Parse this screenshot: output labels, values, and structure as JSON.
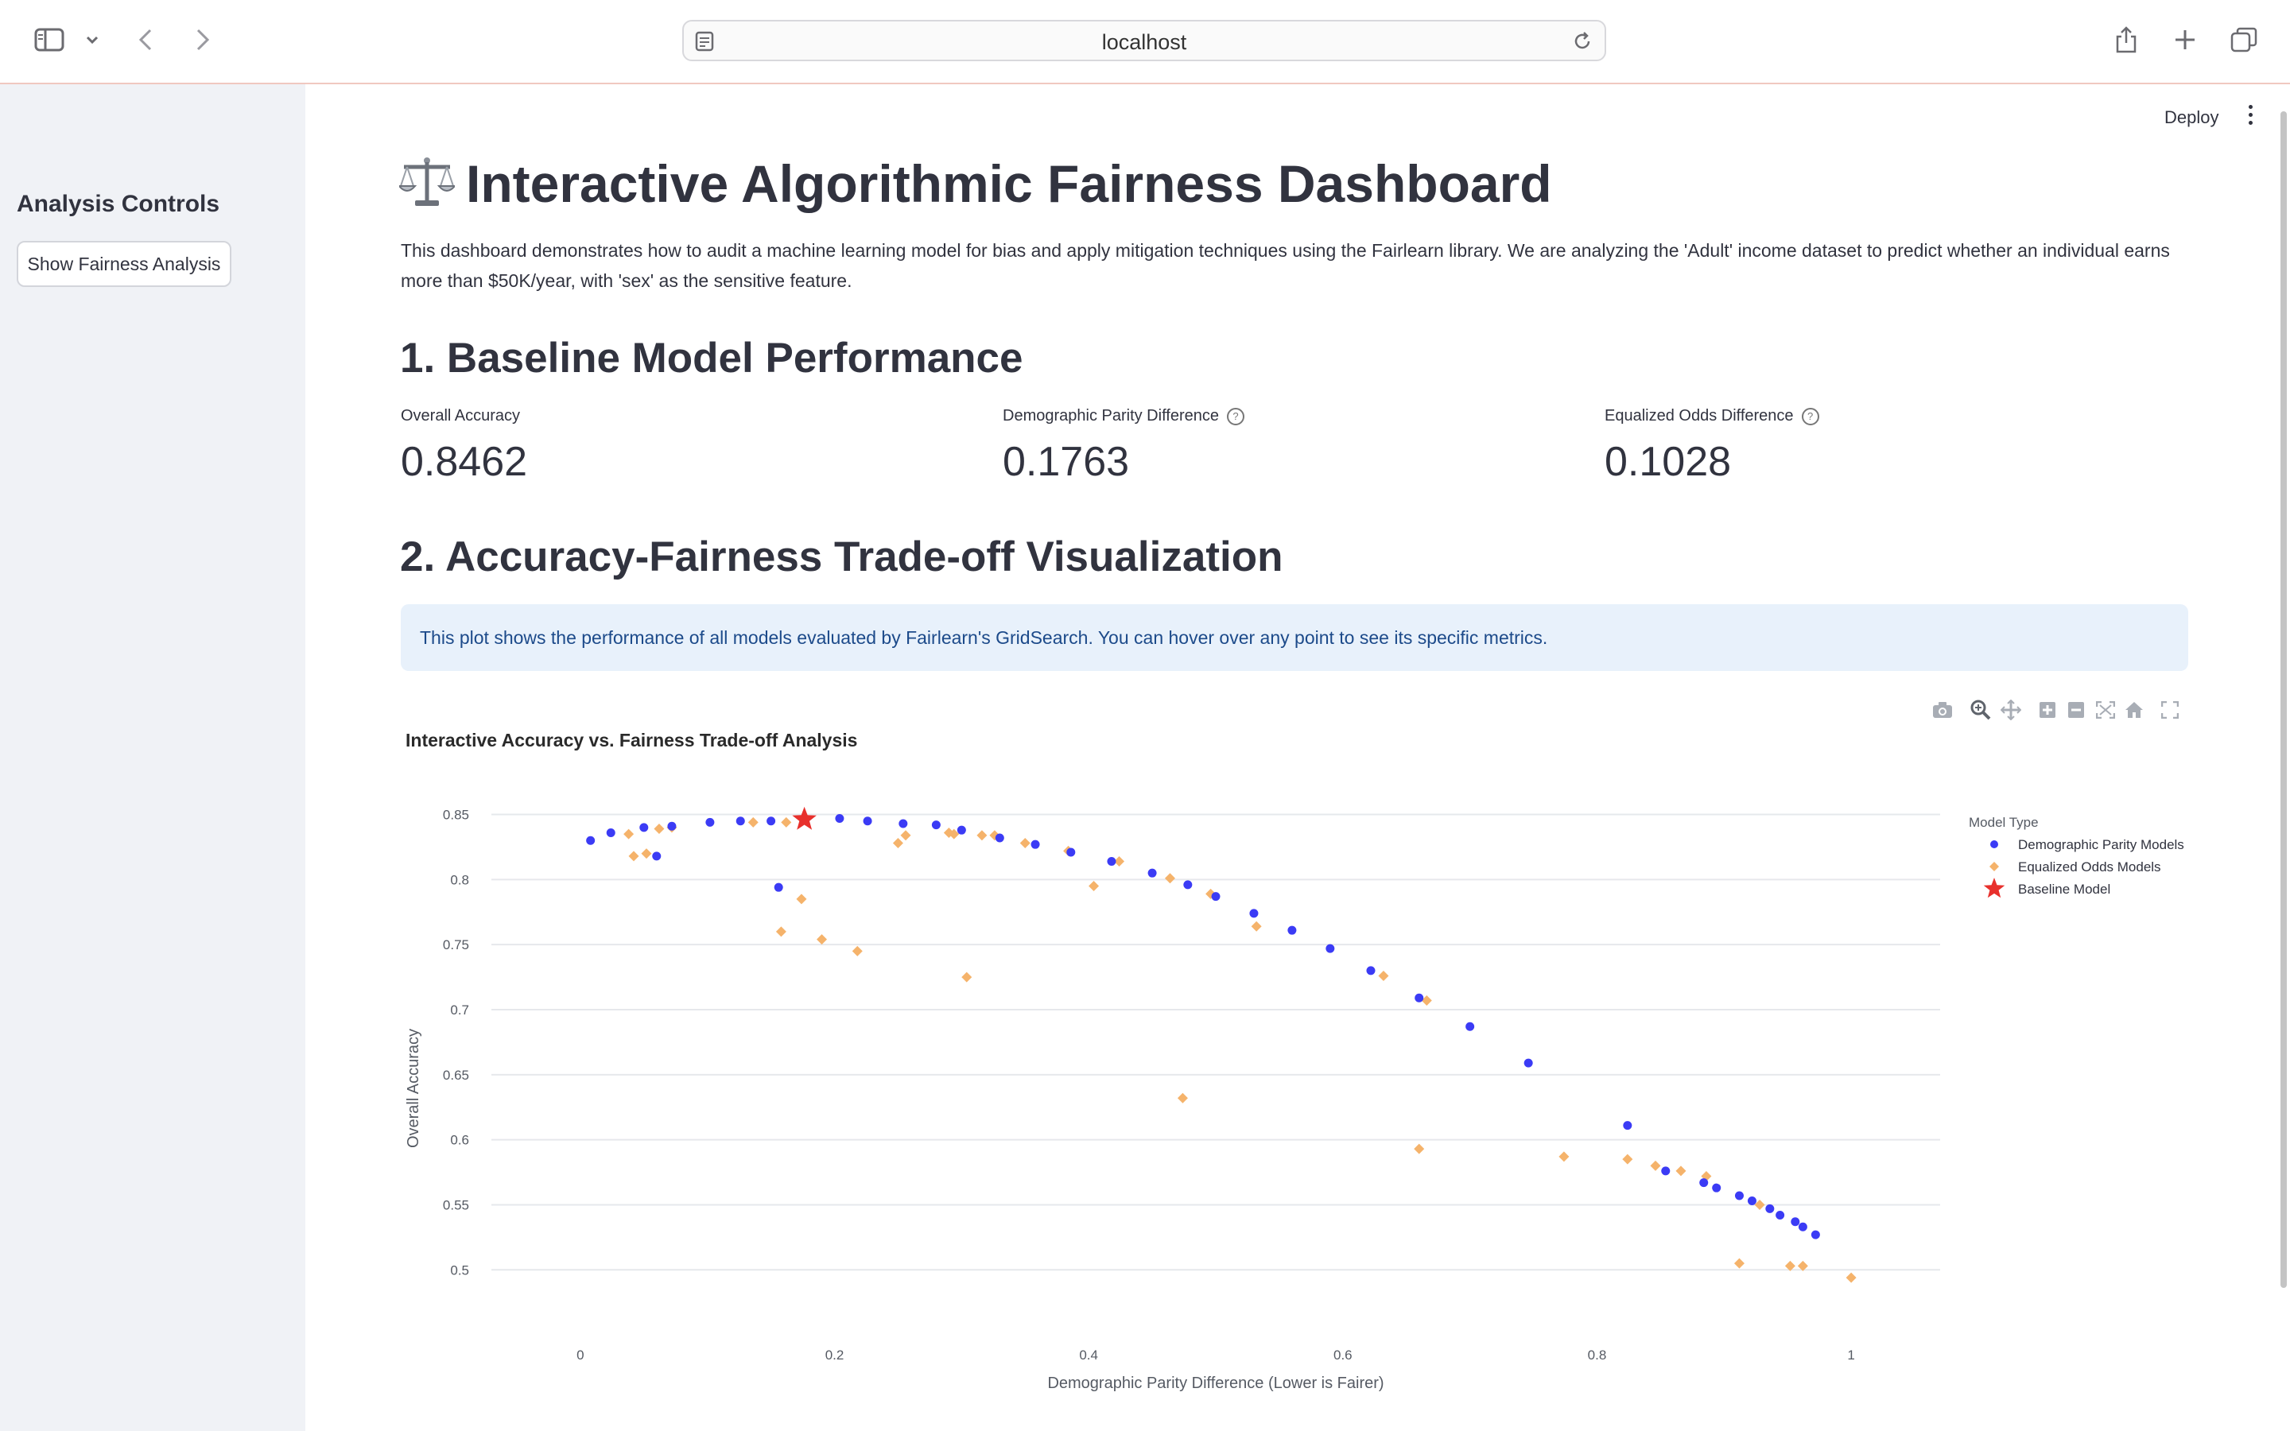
{
  "browser": {
    "url": "localhost"
  },
  "header": {
    "deploy_label": "Deploy"
  },
  "sidebar": {
    "title": "Analysis Controls",
    "button_label": "Show Fairness Analysis"
  },
  "main": {
    "title": "Interactive Algorithmic Fairness Dashboard",
    "title_icon": "balance-scale-icon",
    "intro": "This dashboard demonstrates how to audit a machine learning model for bias and apply mitigation techniques using the Fairlearn library. We are analyzing the 'Adult' income dataset to predict whether an individual earns more than $50K/year, with 'sex' as the sensitive feature.",
    "section1": "1. Baseline Model Performance",
    "metrics": [
      {
        "label": "Overall Accuracy",
        "value": "0.8462",
        "help": false
      },
      {
        "label": "Demographic Parity Difference",
        "value": "0.1763",
        "help": true
      },
      {
        "label": "Equalized Odds Difference",
        "value": "0.1028",
        "help": true
      }
    ],
    "section2": "2. Accuracy-Fairness Trade-off Visualization",
    "info": "This plot shows the performance of all models evaluated by Fairlearn's GridSearch. You can hover over any point to see its specific metrics."
  },
  "chart_data": {
    "type": "scatter",
    "title": "Interactive Accuracy vs. Fairness Trade-off Analysis",
    "xlabel": "Demographic Parity Difference (Lower is Fairer)",
    "ylabel": "Overall Accuracy",
    "xlim": [
      -0.07,
      1.07
    ],
    "ylim": [
      0.48,
      0.865
    ],
    "xticks": [
      0,
      0.2,
      0.4,
      0.6,
      0.8,
      1
    ],
    "yticks": [
      0.5,
      0.55,
      0.6,
      0.65,
      0.7,
      0.75,
      0.8,
      0.85
    ],
    "grid": true,
    "legend_title": "Model Type",
    "legend_position": "top-right",
    "series": [
      {
        "name": "Demographic Parity Models",
        "color": "#3b3bf5",
        "marker": "circle",
        "points": [
          [
            0.008,
            0.83
          ],
          [
            0.024,
            0.836
          ],
          [
            0.05,
            0.84
          ],
          [
            0.06,
            0.818
          ],
          [
            0.072,
            0.841
          ],
          [
            0.102,
            0.844
          ],
          [
            0.126,
            0.845
          ],
          [
            0.15,
            0.845
          ],
          [
            0.156,
            0.794
          ],
          [
            0.204,
            0.847
          ],
          [
            0.226,
            0.845
          ],
          [
            0.254,
            0.843
          ],
          [
            0.28,
            0.842
          ],
          [
            0.3,
            0.838
          ],
          [
            0.33,
            0.832
          ],
          [
            0.358,
            0.827
          ],
          [
            0.386,
            0.821
          ],
          [
            0.418,
            0.814
          ],
          [
            0.45,
            0.805
          ],
          [
            0.478,
            0.796
          ],
          [
            0.5,
            0.787
          ],
          [
            0.53,
            0.774
          ],
          [
            0.56,
            0.761
          ],
          [
            0.59,
            0.747
          ],
          [
            0.622,
            0.73
          ],
          [
            0.66,
            0.709
          ],
          [
            0.7,
            0.687
          ],
          [
            0.746,
            0.659
          ],
          [
            0.824,
            0.611
          ],
          [
            0.854,
            0.576
          ],
          [
            0.884,
            0.567
          ],
          [
            0.894,
            0.563
          ],
          [
            0.912,
            0.557
          ],
          [
            0.922,
            0.553
          ],
          [
            0.936,
            0.547
          ],
          [
            0.944,
            0.542
          ],
          [
            0.956,
            0.537
          ],
          [
            0.962,
            0.533
          ],
          [
            0.972,
            0.527
          ]
        ]
      },
      {
        "name": "Equalized Odds Models",
        "color": "#f5b36b",
        "marker": "diamond",
        "points": [
          [
            0.038,
            0.835
          ],
          [
            0.042,
            0.818
          ],
          [
            0.052,
            0.82
          ],
          [
            0.062,
            0.839
          ],
          [
            0.072,
            0.84
          ],
          [
            0.136,
            0.844
          ],
          [
            0.162,
            0.844
          ],
          [
            0.158,
            0.76
          ],
          [
            0.174,
            0.785
          ],
          [
            0.19,
            0.754
          ],
          [
            0.218,
            0.745
          ],
          [
            0.25,
            0.828
          ],
          [
            0.256,
            0.834
          ],
          [
            0.29,
            0.836
          ],
          [
            0.294,
            0.835
          ],
          [
            0.304,
            0.725
          ],
          [
            0.316,
            0.834
          ],
          [
            0.326,
            0.834
          ],
          [
            0.35,
            0.828
          ],
          [
            0.384,
            0.822
          ],
          [
            0.404,
            0.795
          ],
          [
            0.424,
            0.814
          ],
          [
            0.464,
            0.801
          ],
          [
            0.474,
            0.632
          ],
          [
            0.496,
            0.789
          ],
          [
            0.532,
            0.764
          ],
          [
            0.632,
            0.726
          ],
          [
            0.66,
            0.593
          ],
          [
            0.666,
            0.707
          ],
          [
            0.774,
            0.587
          ],
          [
            0.824,
            0.585
          ],
          [
            0.846,
            0.58
          ],
          [
            0.866,
            0.576
          ],
          [
            0.886,
            0.572
          ],
          [
            0.912,
            0.505
          ],
          [
            0.928,
            0.55
          ],
          [
            0.952,
            0.503
          ],
          [
            0.962,
            0.503
          ],
          [
            1.0,
            0.494
          ]
        ]
      },
      {
        "name": "Baseline Model",
        "color": "#e8302c",
        "marker": "star",
        "points": [
          [
            0.1763,
            0.8462
          ]
        ]
      }
    ]
  }
}
